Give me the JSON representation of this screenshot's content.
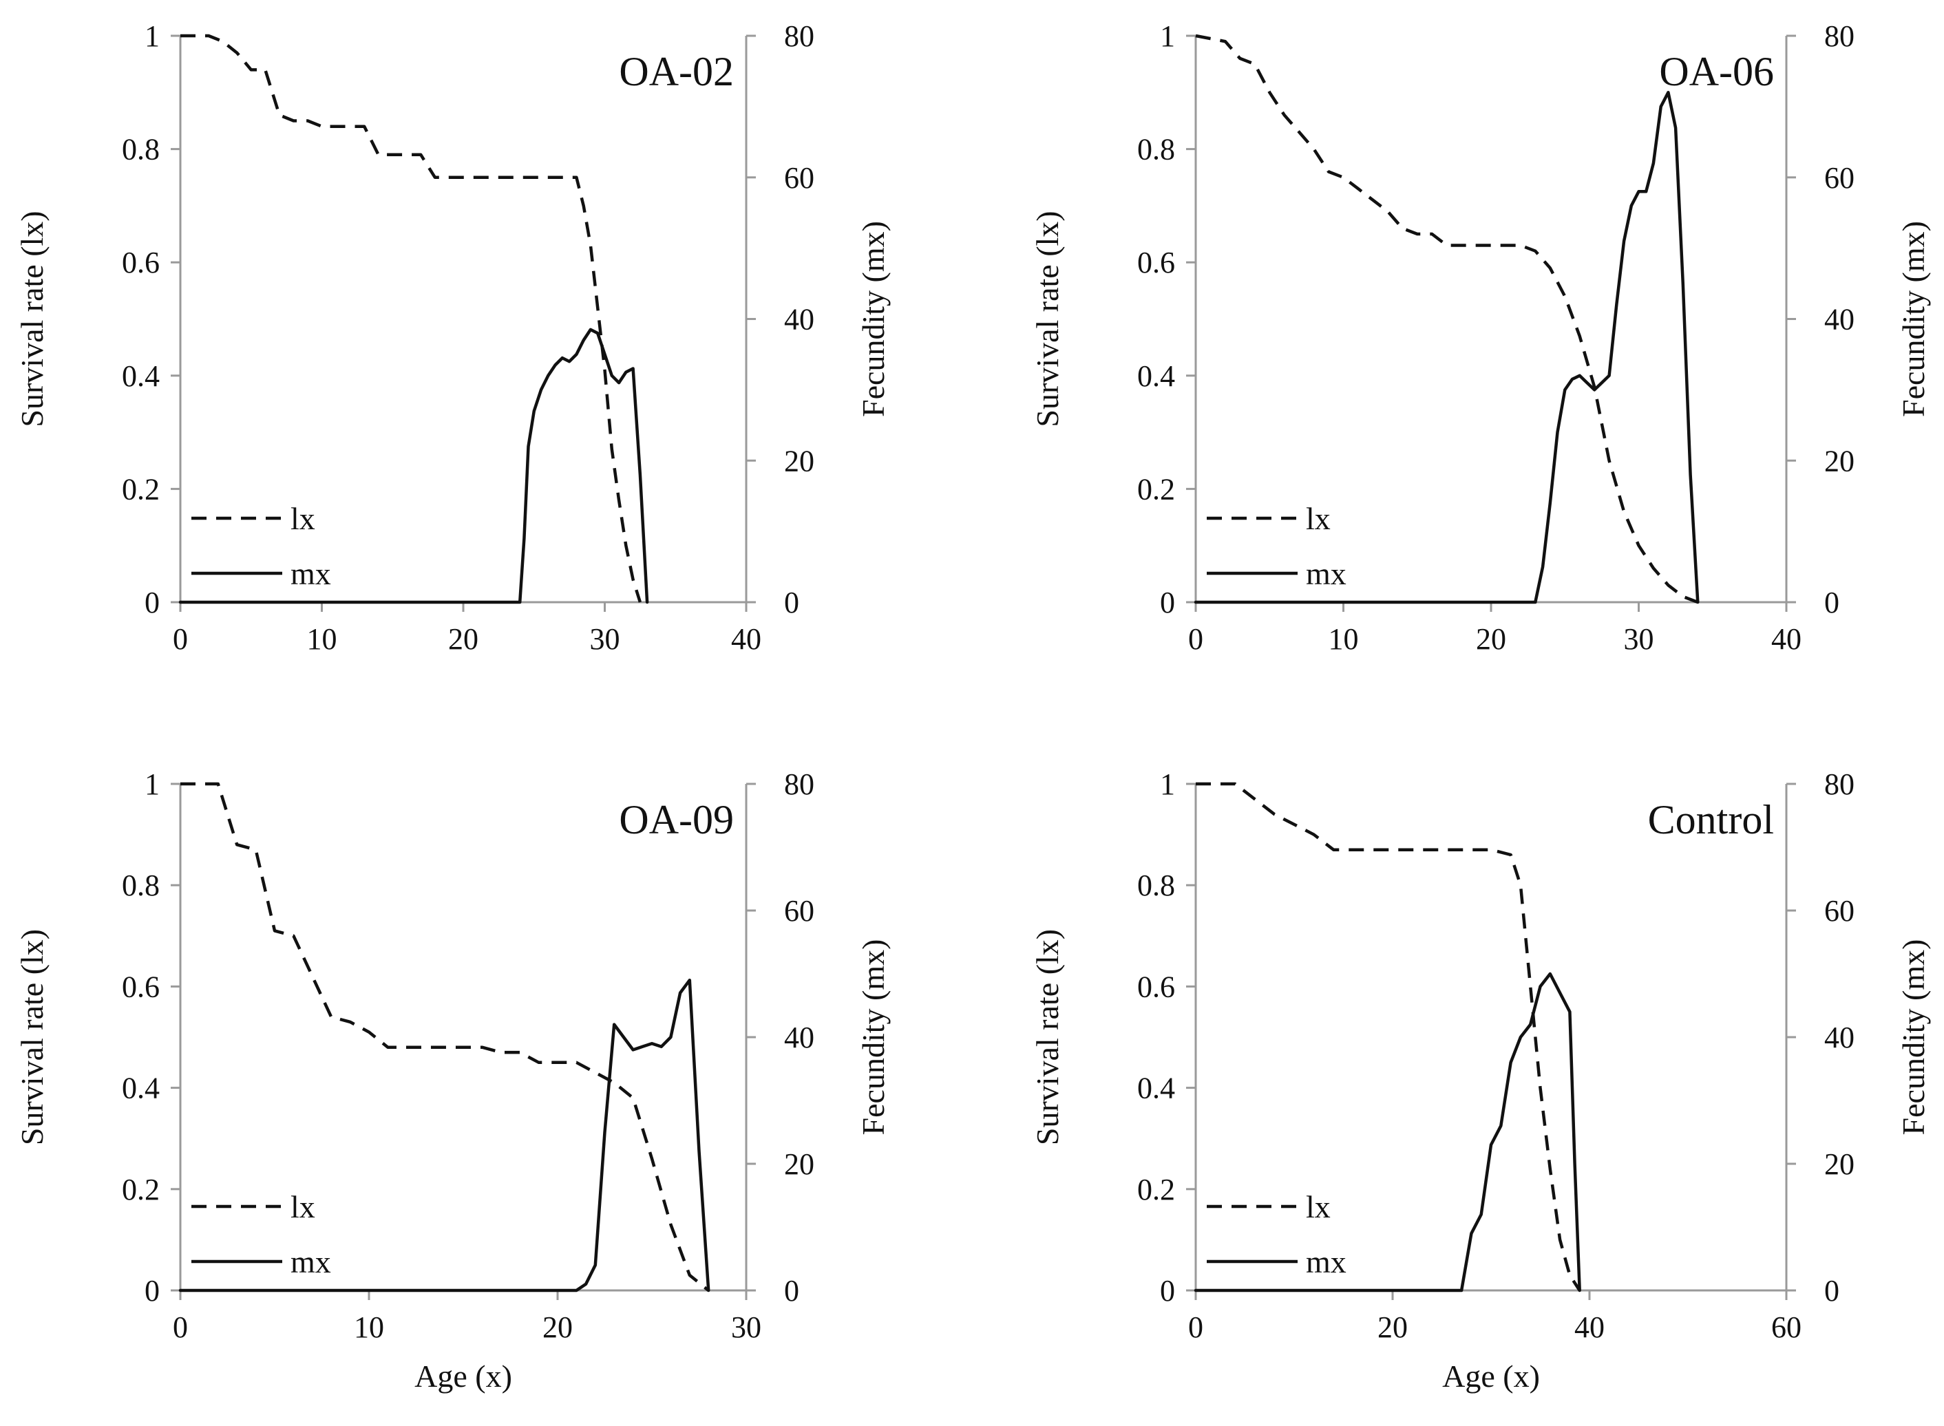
{
  "figure": {
    "style": {
      "ink_color": "#111111",
      "axis_color": "#9a9a9a",
      "background": "#ffffff"
    }
  },
  "chart_data": [
    {
      "type": "line",
      "panel_id": "oa02",
      "title": "OA-02",
      "xlabel": "",
      "ylabel": "Survival rate (lx)",
      "y2label": "Fecundity (mx)",
      "xlim": [
        0,
        40
      ],
      "ylim": [
        0,
        1
      ],
      "y2lim": [
        0,
        80
      ],
      "xticks": [
        0,
        10,
        20,
        30,
        40
      ],
      "yticks": [
        0,
        0.2,
        0.4,
        0.6,
        0.8,
        1
      ],
      "y2ticks": [
        0,
        20,
        40,
        60,
        80
      ],
      "legend": "bottom-left",
      "series": [
        {
          "name": "lx",
          "style": "dashed",
          "axis": "left",
          "x": [
            0,
            2,
            3,
            4,
            5,
            6,
            7,
            8,
            9,
            10,
            12,
            13,
            14,
            15,
            16,
            17,
            18,
            20,
            22,
            24,
            26,
            27,
            28,
            28.5,
            29,
            29.5,
            30,
            30.5,
            31,
            31.5,
            32,
            32.5
          ],
          "values": [
            1,
            1,
            0.99,
            0.97,
            0.94,
            0.94,
            0.86,
            0.85,
            0.85,
            0.84,
            0.84,
            0.84,
            0.79,
            0.79,
            0.79,
            0.79,
            0.75,
            0.75,
            0.75,
            0.75,
            0.75,
            0.75,
            0.75,
            0.7,
            0.63,
            0.52,
            0.41,
            0.27,
            0.18,
            0.1,
            0.04,
            0
          ]
        },
        {
          "name": "mx",
          "style": "solid",
          "axis": "right",
          "x": [
            0,
            24,
            24.3,
            24.6,
            25,
            25.5,
            26,
            26.5,
            27,
            27.5,
            28,
            28.5,
            29,
            29.5,
            30,
            30.5,
            31,
            31.5,
            32,
            32.5,
            33
          ],
          "values": [
            0,
            0,
            9,
            22,
            27,
            30,
            32,
            33.5,
            34.5,
            34,
            35,
            37,
            38.5,
            38,
            35,
            32,
            31,
            32.5,
            33,
            18,
            0
          ]
        }
      ]
    },
    {
      "type": "line",
      "panel_id": "oa06",
      "title": "OA-06",
      "xlabel": "",
      "ylabel": "Survival rate (lx)",
      "y2label": "Fecundity (mx)",
      "xlim": [
        0,
        40
      ],
      "ylim": [
        0,
        1
      ],
      "y2lim": [
        0,
        80
      ],
      "xticks": [
        0,
        10,
        20,
        30,
        40
      ],
      "yticks": [
        0,
        0.2,
        0.4,
        0.6,
        0.8,
        1
      ],
      "y2ticks": [
        0,
        20,
        40,
        60,
        80
      ],
      "legend": "bottom-left",
      "series": [
        {
          "name": "lx",
          "style": "dashed",
          "axis": "left",
          "x": [
            0,
            2,
            3,
            4,
            5,
            6,
            7,
            8,
            9,
            10,
            11,
            12,
            13,
            14,
            15,
            16,
            17,
            18,
            20,
            22,
            23,
            24,
            25,
            26,
            27,
            28,
            29,
            30,
            31,
            32,
            33,
            34
          ],
          "values": [
            1,
            0.99,
            0.96,
            0.95,
            0.9,
            0.86,
            0.83,
            0.8,
            0.76,
            0.75,
            0.73,
            0.71,
            0.69,
            0.66,
            0.65,
            0.65,
            0.63,
            0.63,
            0.63,
            0.63,
            0.62,
            0.59,
            0.54,
            0.47,
            0.38,
            0.25,
            0.16,
            0.1,
            0.06,
            0.03,
            0.01,
            0
          ]
        },
        {
          "name": "mx",
          "style": "solid",
          "axis": "right",
          "x": [
            0,
            23,
            23.5,
            24,
            24.5,
            25,
            25.5,
            26,
            26.5,
            27,
            27.5,
            28,
            28.5,
            29,
            29.5,
            30,
            30.5,
            31,
            31.5,
            32,
            32.5,
            33,
            33.5,
            34
          ],
          "values": [
            0,
            0,
            5,
            14,
            24,
            30,
            31.5,
            32,
            31,
            30,
            31,
            32,
            42,
            51,
            56,
            58,
            58,
            62,
            70,
            72,
            67,
            45,
            18,
            0
          ]
        }
      ]
    },
    {
      "type": "line",
      "panel_id": "oa09",
      "title": "OA-09",
      "xlabel": "Age (x)",
      "ylabel": "Survival rate (lx)",
      "y2label": "Fecundity (mx)",
      "xlim": [
        0,
        30
      ],
      "ylim": [
        0,
        1
      ],
      "y2lim": [
        0,
        80
      ],
      "xticks": [
        0,
        10,
        20,
        30
      ],
      "yticks": [
        0,
        0.2,
        0.4,
        0.6,
        0.8,
        1
      ],
      "y2ticks": [
        0,
        20,
        40,
        60,
        80
      ],
      "legend": "bottom-left",
      "series": [
        {
          "name": "lx",
          "style": "dashed",
          "axis": "left",
          "x": [
            0,
            2,
            3,
            4,
            5,
            6,
            7,
            8,
            9,
            10,
            11,
            13,
            15,
            16,
            17,
            18,
            19,
            20,
            21,
            22,
            23,
            24,
            25,
            26,
            27,
            28
          ],
          "values": [
            1,
            1,
            0.88,
            0.87,
            0.71,
            0.7,
            0.62,
            0.54,
            0.53,
            0.51,
            0.48,
            0.48,
            0.48,
            0.48,
            0.47,
            0.47,
            0.45,
            0.45,
            0.45,
            0.43,
            0.41,
            0.38,
            0.26,
            0.13,
            0.03,
            0
          ]
        },
        {
          "name": "mx",
          "style": "solid",
          "axis": "right",
          "x": [
            0,
            21,
            21.5,
            22,
            22.5,
            23,
            23.5,
            24,
            24.5,
            25,
            25.5,
            26,
            26.5,
            27,
            27.5,
            28
          ],
          "values": [
            0,
            0,
            1,
            4,
            25,
            42,
            40,
            38,
            38.5,
            39,
            38.5,
            40,
            47,
            49,
            22,
            0
          ]
        }
      ]
    },
    {
      "type": "line",
      "panel_id": "control",
      "title": "Control",
      "xlabel": "Age (x)",
      "ylabel": "Survival rate (lx)",
      "y2label": "Fecundity (mx)",
      "xlim": [
        0,
        60
      ],
      "ylim": [
        0,
        1
      ],
      "y2lim": [
        0,
        80
      ],
      "xticks": [
        0,
        20,
        40,
        60
      ],
      "yticks": [
        0,
        0.2,
        0.4,
        0.6,
        0.8,
        1
      ],
      "y2ticks": [
        0,
        20,
        40,
        60,
        80
      ],
      "legend": "bottom-left",
      "series": [
        {
          "name": "lx",
          "style": "dashed",
          "axis": "left",
          "x": [
            0,
            4,
            6,
            8,
            10,
            12,
            14,
            16,
            20,
            25,
            30,
            32,
            33,
            34,
            35,
            36,
            37,
            38,
            39
          ],
          "values": [
            1,
            1,
            0.97,
            0.94,
            0.92,
            0.9,
            0.87,
            0.87,
            0.87,
            0.87,
            0.87,
            0.86,
            0.8,
            0.6,
            0.4,
            0.24,
            0.1,
            0.03,
            0
          ]
        },
        {
          "name": "mx",
          "style": "solid",
          "axis": "right",
          "x": [
            0,
            27,
            28,
            29,
            30,
            31,
            32,
            33,
            34,
            35,
            36,
            37,
            38,
            38.5,
            39
          ],
          "values": [
            0,
            0,
            9,
            12,
            23,
            26,
            36,
            40,
            42,
            48,
            50,
            47,
            44,
            20,
            0
          ]
        }
      ]
    }
  ]
}
